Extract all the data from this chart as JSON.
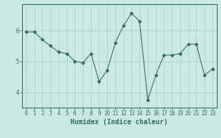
{
  "x": [
    0,
    1,
    2,
    3,
    4,
    5,
    6,
    7,
    8,
    9,
    10,
    11,
    12,
    13,
    14,
    15,
    16,
    17,
    18,
    19,
    20,
    21,
    22,
    23
  ],
  "y": [
    5.95,
    5.95,
    5.7,
    5.5,
    5.3,
    5.25,
    5.0,
    4.95,
    5.25,
    4.35,
    4.7,
    5.6,
    6.15,
    6.55,
    6.3,
    3.75,
    4.55,
    5.2,
    5.2,
    5.25,
    5.55,
    5.55,
    4.55,
    4.75
  ],
  "xlabel": "Humidex (Indice chaleur)",
  "xlim": [
    -0.5,
    23.5
  ],
  "ylim": [
    3.5,
    6.85
  ],
  "yticks": [
    4,
    5,
    6
  ],
  "xticks": [
    0,
    1,
    2,
    3,
    4,
    5,
    6,
    7,
    8,
    9,
    10,
    11,
    12,
    13,
    14,
    15,
    16,
    17,
    18,
    19,
    20,
    21,
    22,
    23
  ],
  "line_color": "#2e6e62",
  "marker": "D",
  "marker_size": 2.5,
  "bg_color": "#cce8e4",
  "grid_color": "#aacfca",
  "axes_color": "#2e6e62",
  "label_fontsize": 7,
  "tick_fontsize": 5.5
}
